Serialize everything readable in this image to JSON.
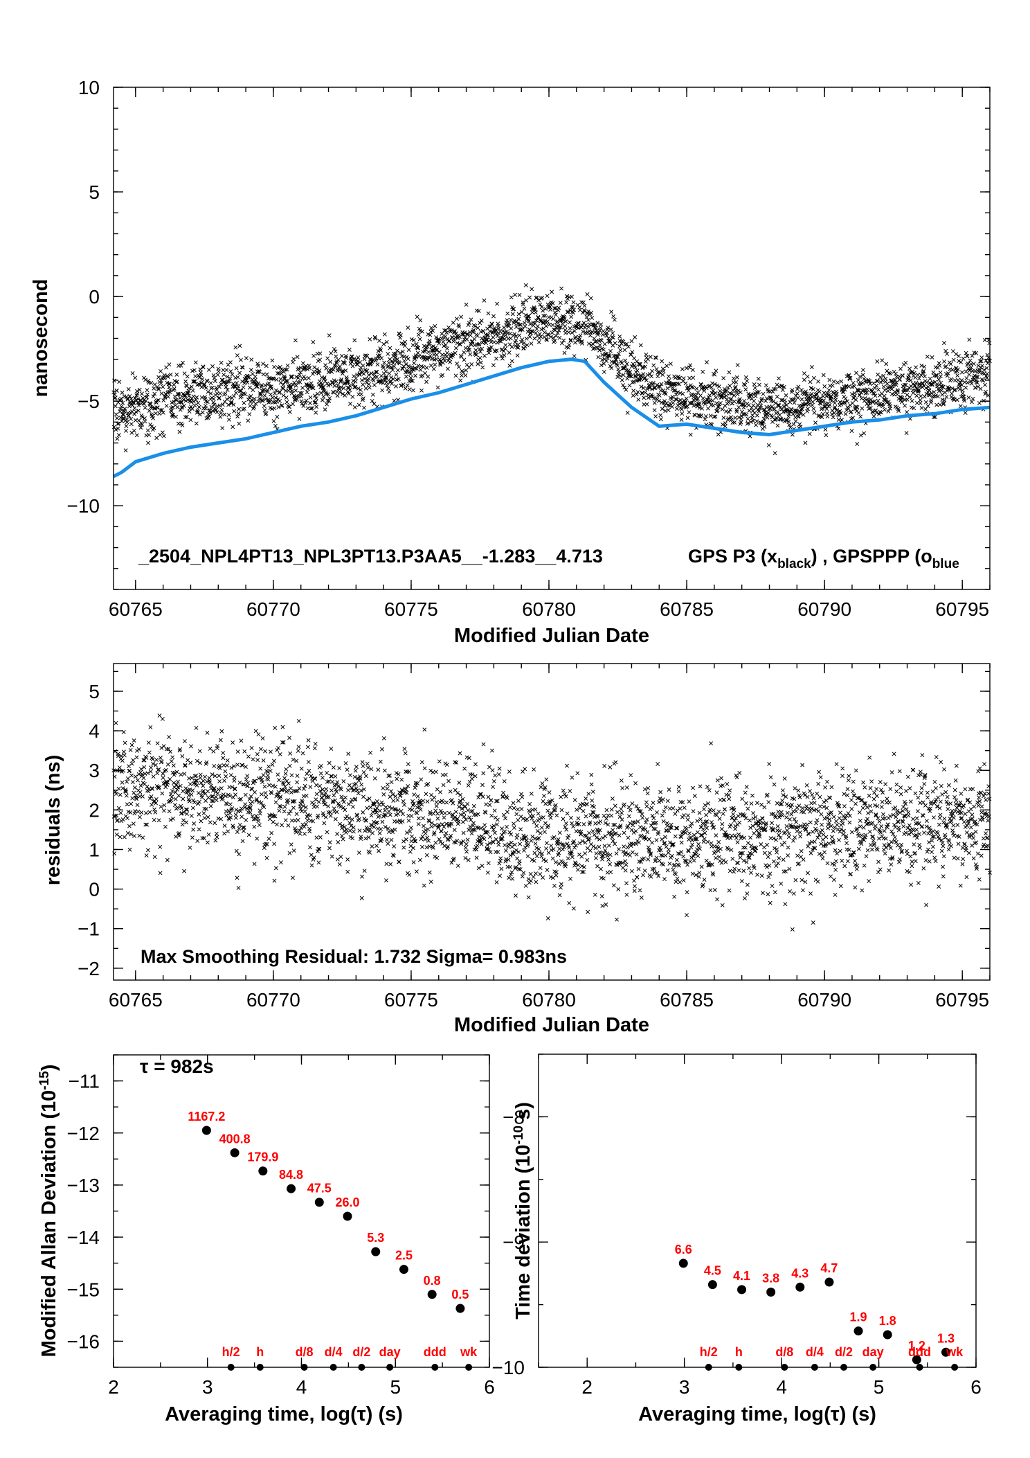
{
  "chart_data": [
    {
      "type": "scatter",
      "title": "",
      "xlabel": "Modified Julian Date",
      "ylabel": "nanosecond",
      "xlim": [
        60764.2,
        60796.0
      ],
      "ylim": [
        -14,
        10
      ],
      "xticks": [
        60765,
        60770,
        60775,
        60780,
        60785,
        60790,
        60795
      ],
      "xtick_labels": [
        "60765",
        "60770",
        "60775",
        "60780",
        "60785",
        "60790",
        "60795"
      ],
      "yticks": [
        10,
        5,
        0,
        -5,
        -10
      ],
      "ytick_labels": [
        "10",
        "5",
        "0",
        "−5",
        "−10"
      ],
      "annotation": "_2504_NPL4PT13_NPL3PT13.P3AA5__-1.283__4.713",
      "legend": {
        "prefix": "GPS P3 (x",
        "black_sub": "black",
        "mid": ") ,  GPSPPP (o",
        "blue_sub": "blue"
      },
      "colors": {
        "points": "#000000",
        "line": "#1a8fe8"
      },
      "series": [
        {
          "name": "GPS P3",
          "marker": "x",
          "trend": {
            "x": [
              60764.2,
              60766,
              60768,
              60770,
              60772,
              60774,
              60776,
              60778,
              60779.5,
              60780.5,
              60781.5,
              60783,
              60784,
              60786,
              60788,
              60790,
              60792,
              60794,
              60796
            ],
            "y": [
              -5.5,
              -5.0,
              -4.5,
              -4.3,
              -4.0,
              -3.5,
              -2.5,
              -1.8,
              -1.2,
              -1.0,
              -1.5,
              -3.5,
              -4.5,
              -5.0,
              -5.3,
              -5.1,
              -4.6,
              -4.2,
              -3.8
            ]
          },
          "scatter_sd": 0.95,
          "approx_points": 2800
        },
        {
          "name": "GPSPPP",
          "marker": "line",
          "x": [
            60764.2,
            60764.5,
            60765,
            60766,
            60767,
            60768,
            60769,
            60770,
            60771,
            60772,
            60773,
            60774,
            60775,
            60776,
            60777,
            60778,
            60779,
            60780,
            60780.8,
            60781.3,
            60782,
            60783,
            60784,
            60785,
            60786,
            60787,
            60788,
            60789,
            60790,
            60791,
            60792,
            60793,
            60794,
            60795,
            60796
          ],
          "y": [
            -8.6,
            -8.4,
            -7.9,
            -7.5,
            -7.2,
            -7.0,
            -6.8,
            -6.5,
            -6.2,
            -6.0,
            -5.7,
            -5.3,
            -4.9,
            -4.6,
            -4.2,
            -3.8,
            -3.4,
            -3.1,
            -3.0,
            -3.1,
            -4.1,
            -5.3,
            -6.2,
            -6.1,
            -6.3,
            -6.5,
            -6.6,
            -6.4,
            -6.2,
            -6.0,
            -5.9,
            -5.7,
            -5.6,
            -5.4,
            -5.3
          ]
        }
      ]
    },
    {
      "type": "scatter",
      "title": "",
      "xlabel": "Modified Julian Date",
      "ylabel": "residuals (ns)",
      "xlim": [
        60764.2,
        60796.0
      ],
      "ylim": [
        -2.3,
        5.7
      ],
      "xticks": [
        60765,
        60770,
        60775,
        60780,
        60785,
        60790,
        60795
      ],
      "xtick_labels": [
        "60765",
        "60770",
        "60775",
        "60780",
        "60785",
        "60790",
        "60795"
      ],
      "yticks": [
        5,
        4,
        3,
        2,
        1,
        0,
        -1,
        -2
      ],
      "ytick_labels": [
        "5",
        "4",
        "3",
        "2",
        "1",
        "0",
        "−1",
        "−2"
      ],
      "annotation": "Max Smoothing Residual: 1.732  Sigma= 0.983ns",
      "series": [
        {
          "name": "residuals",
          "marker": "x",
          "trend": {
            "x": [
              60764.2,
              60768,
              60772,
              60776,
              60780,
              60784,
              60788,
              60792,
              60796
            ],
            "y": [
              2.6,
              2.4,
              2.2,
              1.8,
              1.3,
              1.3,
              1.4,
              1.6,
              1.7
            ]
          },
          "scatter_sd": 0.95,
          "approx_points": 2800
        }
      ]
    },
    {
      "type": "scatter",
      "title": "",
      "xlabel": "Averaging time, log(τ) (s)",
      "ylabel": "Modified Allan Deviation (10",
      "ylabel_sup": "-15",
      "ylabel_tail": ")",
      "tau_note": "τ = 982s",
      "xlim": [
        2,
        6
      ],
      "ylim": [
        -16.5,
        -10.5
      ],
      "xticks": [
        2,
        3,
        4,
        5,
        6
      ],
      "xtick_labels": [
        "2",
        "3",
        "4",
        "5",
        "6"
      ],
      "yticks": [
        -11,
        -12,
        -13,
        -14,
        -15,
        -16
      ],
      "ytick_labels": [
        "−11",
        "−12",
        "−13",
        "−14",
        "−15",
        "−16"
      ],
      "series": [
        {
          "name": "MDEV",
          "x": [
            2.99,
            3.29,
            3.59,
            3.89,
            4.19,
            4.49,
            4.79,
            5.09,
            5.39,
            5.69
          ],
          "y": [
            -11.95,
            -12.38,
            -12.73,
            -13.07,
            -13.33,
            -13.6,
            -14.28,
            -14.62,
            -15.1,
            -15.37
          ],
          "labels": [
            "1167.2",
            "400.8",
            "179.9",
            "84.8",
            "47.5",
            "26.0",
            "5.3",
            "2.5",
            "0.8",
            "0.5"
          ]
        }
      ],
      "markers": {
        "x": [
          3.25,
          3.56,
          4.03,
          4.34,
          4.64,
          4.94,
          5.42,
          5.78
        ],
        "labels": [
          "h/2",
          "h",
          "d/8",
          "d/4",
          "d/2",
          "day",
          "ddd",
          "wk"
        ]
      }
    },
    {
      "type": "scatter",
      "title": "",
      "xlabel": "Averaging time, log(τ) (s)",
      "ylabel": "Time deviation (10",
      "ylabel_sup": "-10",
      "ylabel_tail": " s)",
      "xlim": [
        1.5,
        6
      ],
      "ylim": [
        -10,
        -7.5
      ],
      "xticks": [
        2,
        3,
        4,
        5,
        6
      ],
      "xtick_labels": [
        "2",
        "3",
        "4",
        "5",
        "6"
      ],
      "yticks": [
        -8,
        -9,
        -10
      ],
      "ytick_labels": [
        "−8",
        "−9",
        "−10"
      ],
      "series": [
        {
          "name": "TDEV",
          "x": [
            2.99,
            3.29,
            3.59,
            3.89,
            4.19,
            4.49,
            4.79,
            5.09,
            5.39,
            5.69
          ],
          "y": [
            -9.17,
            -9.34,
            -9.38,
            -9.4,
            -9.36,
            -9.32,
            -9.71,
            -9.74,
            -9.94,
            -9.88
          ],
          "labels": [
            "6.6",
            "4.5",
            "4.1",
            "3.8",
            "4.3",
            "4.7",
            "1.9",
            "1.8",
            "1.2",
            "1.3"
          ]
        }
      ],
      "markers": {
        "x": [
          3.25,
          3.56,
          4.03,
          4.34,
          4.64,
          4.94,
          5.42,
          5.78
        ],
        "labels": [
          "h/2",
          "h",
          "d/8",
          "d/4",
          "d/2",
          "day",
          "ddd",
          "wk"
        ]
      }
    }
  ]
}
